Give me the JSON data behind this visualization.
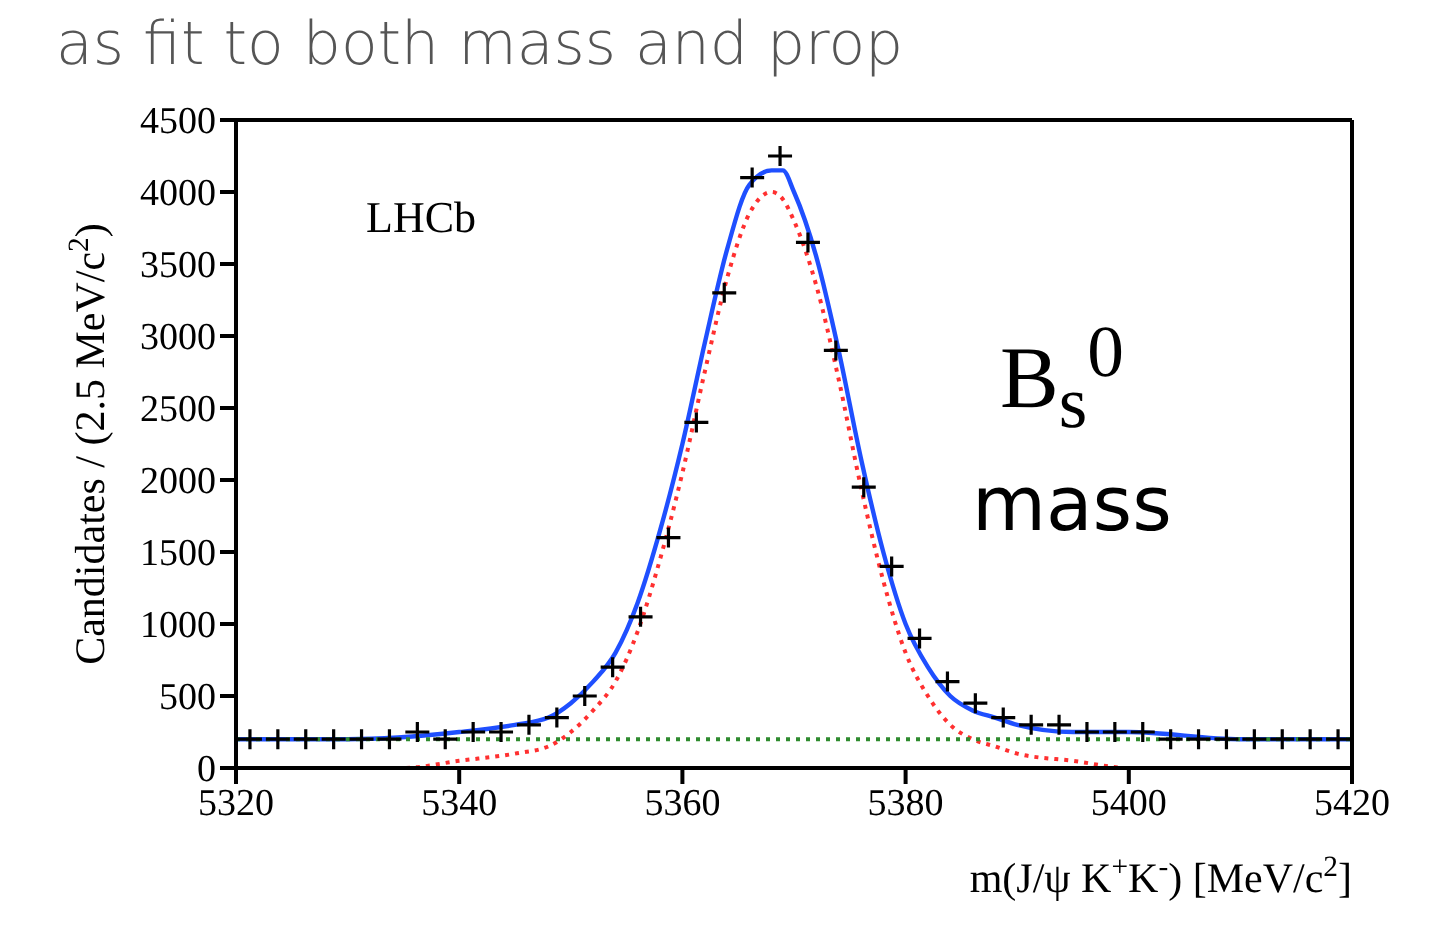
{
  "chart_data": {
    "type": "scatter",
    "xlabel": "m(J/ψ K$^{+}$K$^{-}$) [MeV/c$^{2}$]",
    "ylabel": "Candidates / (2.5 MeV/c$^{2}$)",
    "annotations": [
      "as fit to both mass and prop",
      "LHCb",
      "B$_{s}$$^{0}$",
      "mass"
    ],
    "xlim": [
      5320,
      5420
    ],
    "xticks": [
      5320,
      5340,
      5360,
      5380,
      5400,
      5420
    ],
    "ylim": [
      0,
      4500
    ],
    "yticks": [
      0,
      500,
      1000,
      1500,
      2000,
      2500,
      3000,
      3500,
      4000,
      4500
    ],
    "series": [
      {
        "color": "#000000",
        "marker": "cross",
        "x": [
          5321.25,
          5323.75,
          5326.25,
          5328.75,
          5331.25,
          5333.75,
          5336.25,
          5338.75,
          5341.25,
          5343.75,
          5346.25,
          5348.75,
          5351.25,
          5353.75,
          5356.25,
          5358.75,
          5361.25,
          5363.75,
          5366.25,
          5368.75,
          5371.25,
          5373.75,
          5376.25,
          5378.75,
          5381.25,
          5383.75,
          5386.25,
          5388.75,
          5391.25,
          5393.75,
          5396.25,
          5398.75,
          5401.25,
          5403.75,
          5406.25,
          5408.75,
          5411.25,
          5413.75,
          5416.25,
          5418.75
        ],
        "values": [
          200,
          200,
          200,
          200,
          200,
          200,
          250,
          200,
          250,
          250,
          300,
          350,
          500,
          700,
          1050,
          1600,
          2400,
          3300,
          4100,
          4250,
          3650,
          2900,
          1950,
          1400,
          900,
          600,
          450,
          350,
          300,
          300,
          250,
          250,
          250,
          200,
          200,
          200,
          200,
          200,
          200,
          200
        ]
      },
      {
        "type": "line",
        "color": "#1f4fff",
        "marker": "none",
        "line_style": "solid",
        "x": [
          5320,
          5330,
          5340,
          5345,
          5348,
          5350,
          5352,
          5354,
          5356,
          5358,
          5360,
          5362,
          5364,
          5366,
          5368,
          5369,
          5370,
          5372,
          5374,
          5376,
          5378,
          5380,
          5382,
          5384,
          5386,
          5388,
          5390,
          5395,
          5400,
          5410,
          5420
        ],
        "values": [
          200,
          200,
          250,
          300,
          350,
          450,
          600,
          800,
          1150,
          1650,
          2250,
          2950,
          3600,
          4050,
          4150,
          4150,
          4000,
          3550,
          2900,
          2150,
          1500,
          1000,
          700,
          500,
          400,
          350,
          300,
          250,
          250,
          200,
          200
        ]
      },
      {
        "type": "line",
        "color": "#ff3030",
        "marker": "none",
        "line_style": "dotted",
        "x": [
          5320,
          5335,
          5340,
          5345,
          5348,
          5350,
          5352,
          5354,
          5356,
          5358,
          5360,
          5362,
          5364,
          5366,
          5368,
          5369,
          5370,
          5372,
          5374,
          5376,
          5378,
          5380,
          5382,
          5384,
          5386,
          5388,
          5390,
          5395,
          5400,
          5410,
          5420
        ],
        "values": [
          0,
          0,
          50,
          100,
          150,
          250,
          400,
          600,
          950,
          1450,
          2050,
          2750,
          3400,
          3850,
          4000,
          3950,
          3800,
          3350,
          2700,
          1950,
          1300,
          800,
          500,
          300,
          200,
          150,
          100,
          50,
          0,
          0,
          0
        ]
      },
      {
        "type": "line",
        "color": "#2e8b2e",
        "marker": "none",
        "line_style": "dotted",
        "x": [
          5320,
          5420
        ],
        "values": [
          200,
          200
        ]
      }
    ]
  }
}
